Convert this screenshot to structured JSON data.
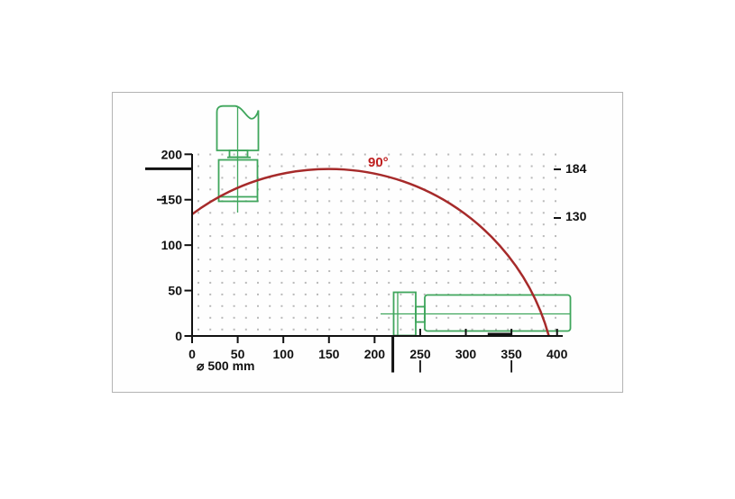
{
  "annotations": {
    "angle_label": "90°",
    "max_height_label": "184",
    "mid_height_label": "130",
    "blade_label": "⌀ 500 mm"
  },
  "axes": {
    "x": {
      "tick_labels": [
        "0",
        "50",
        "100",
        "150",
        "200",
        "250",
        "300",
        "350",
        "400"
      ]
    },
    "y": {
      "tick_labels": [
        "200",
        "150",
        "100",
        "50",
        "0"
      ]
    }
  },
  "colors": {
    "arc": "#a62a2a",
    "angle_text": "#bf1f1f",
    "machine": "#3fa65c",
    "axis": "#111111",
    "grid_dot": "#b9b9b9",
    "panel_border": "#b3b3b3"
  },
  "chart_data": {
    "type": "line",
    "title": "",
    "xlabel": "",
    "ylabel": "",
    "xlim": [
      0,
      400
    ],
    "ylim": [
      0,
      200
    ],
    "grid": "dotted",
    "legend_position": "none",
    "series": [
      {
        "name": "90°",
        "x": [
          0,
          50,
          100,
          150,
          200,
          250,
          300,
          350,
          391
        ],
        "y": [
          134,
          163,
          179,
          184,
          179,
          163,
          134,
          84,
          0
        ]
      }
    ],
    "arc_circle": {
      "center_x": 150,
      "center_y": -66,
      "radius_mm": 250,
      "blade_diameter_mm": 500
    },
    "right_reference_values": [
      "184",
      "130"
    ],
    "left_bold_mark_height": 184,
    "bottom_bold_mark_x": 220,
    "bottom_drop_lines_x": [
      250,
      350
    ],
    "bold_axis_segment_x": [
      324,
      350
    ],
    "caption": "⌀ 500 mm"
  }
}
